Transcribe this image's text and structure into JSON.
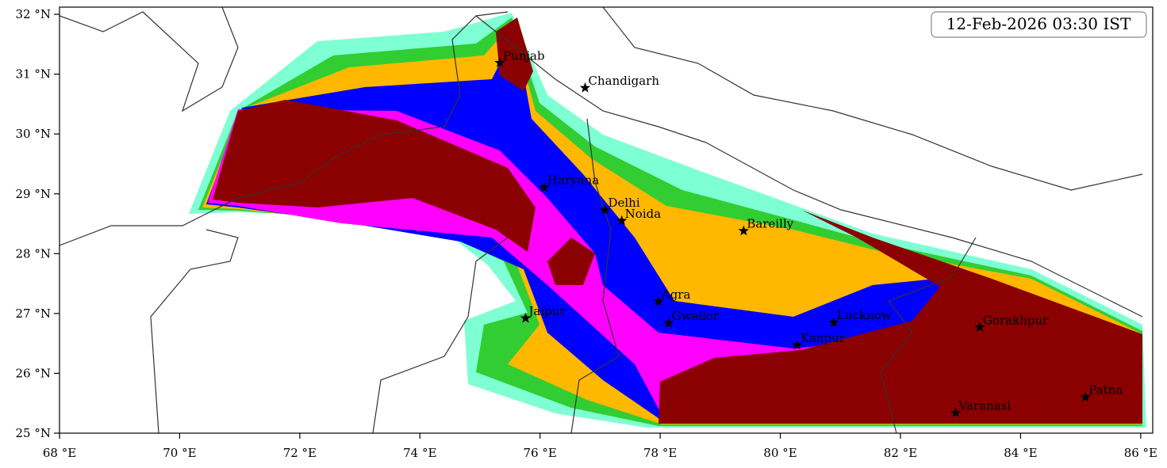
{
  "map": {
    "timestamp": "12-Feb-2026 03:30 IST",
    "xlim": [
      68,
      86.2
    ],
    "ylim": [
      25,
      32.12
    ],
    "xticks": [
      {
        "value": 68,
        "label": "68 °E"
      },
      {
        "value": 70,
        "label": "70 °E"
      },
      {
        "value": 72,
        "label": "72 °E"
      },
      {
        "value": 74,
        "label": "74 °E"
      },
      {
        "value": 76,
        "label": "76 °E"
      },
      {
        "value": 78,
        "label": "78 °E"
      },
      {
        "value": 80,
        "label": "80 °E"
      },
      {
        "value": 82,
        "label": "82 °E"
      },
      {
        "value": 84,
        "label": "84 °E"
      },
      {
        "value": 86,
        "label": "86 °E"
      }
    ],
    "yticks": [
      {
        "value": 25,
        "label": "25 °N"
      },
      {
        "value": 26,
        "label": "26 °N"
      },
      {
        "value": 27,
        "label": "27 °N"
      },
      {
        "value": 28,
        "label": "28 °N"
      },
      {
        "value": 29,
        "label": "29 °N"
      },
      {
        "value": 30,
        "label": "30 °N"
      },
      {
        "value": 31,
        "label": "31 °N"
      },
      {
        "value": 32,
        "label": "32 °N"
      }
    ],
    "cities": [
      {
        "name": "Punjab",
        "lon": 75.33,
        "lat": 31.19
      },
      {
        "name": "Chandigarh",
        "lon": 76.75,
        "lat": 30.77
      },
      {
        "name": "Haryana",
        "lon": 76.07,
        "lat": 29.11
      },
      {
        "name": "Delhi",
        "lon": 77.08,
        "lat": 28.73
      },
      {
        "name": "Noida",
        "lon": 77.36,
        "lat": 28.55
      },
      {
        "name": "Bareilly",
        "lon": 79.39,
        "lat": 28.38
      },
      {
        "name": "Agra",
        "lon": 77.97,
        "lat": 27.2
      },
      {
        "name": "Jaipur",
        "lon": 75.76,
        "lat": 26.92
      },
      {
        "name": "Gwalior",
        "lon": 78.14,
        "lat": 26.84
      },
      {
        "name": "Lucknow",
        "lon": 80.89,
        "lat": 26.85
      },
      {
        "name": "Kanpur",
        "lon": 80.28,
        "lat": 26.47
      },
      {
        "name": "Gorakhpur",
        "lon": 83.32,
        "lat": 26.77
      },
      {
        "name": "Varanasi",
        "lon": 82.92,
        "lat": 25.34
      },
      {
        "name": "Patna",
        "lon": 85.08,
        "lat": 25.6
      }
    ]
  }
}
